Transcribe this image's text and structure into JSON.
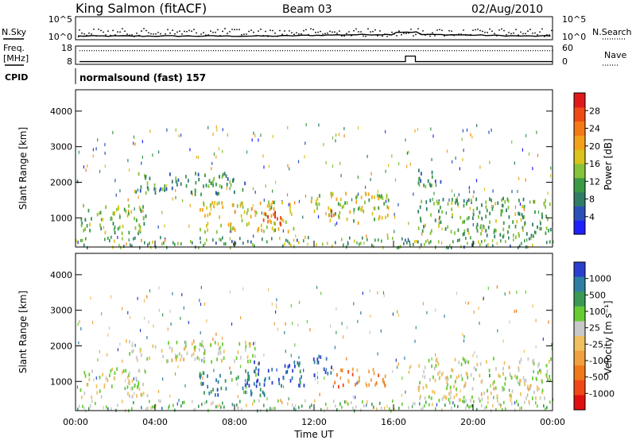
{
  "header": {
    "station": "King Salmon (fitACF)",
    "beam": "Beam 03",
    "date": "02/Aug/2010"
  },
  "left_labels": {
    "nsky": "N.Sky",
    "freq": "Freq.",
    "mhz": "[MHz]",
    "cpid": "CPID"
  },
  "right_labels": {
    "nsearch": "N.Search",
    "nave": "Nave"
  },
  "cpid_text": "normalsound (fast) 157",
  "chart_data": [
    {
      "type": "line",
      "panel": "noise",
      "series": [
        {
          "name": "N.Sky",
          "style": "solid"
        },
        {
          "name": "N.Search",
          "style": "dotted"
        }
      ],
      "y_scale": "log",
      "yticks": [
        "10^5",
        "10^0"
      ],
      "right_ticks": [
        "10^5",
        "10^0"
      ],
      "xlim": [
        0,
        24
      ]
    },
    {
      "type": "line",
      "panel": "frequency",
      "series": [
        {
          "name": "Freq.",
          "style": "solid",
          "segments": [
            {
              "t0": 0.2,
              "t1": 16.6,
              "value": 9.5
            },
            {
              "t0": 16.6,
              "t1": 17.1,
              "value": 12.5
            },
            {
              "t0": 17.1,
              "t1": 24,
              "value": 9.5
            }
          ]
        },
        {
          "name": "Nave",
          "style": "dotted",
          "value": 45
        }
      ],
      "ylim_left": [
        8,
        18
      ],
      "yticks_left": [
        "18",
        "8"
      ],
      "ylim_right": [
        0,
        60
      ],
      "yticks_right": [
        "60",
        "0"
      ]
    },
    {
      "type": "heatmap",
      "panel": "power",
      "ylabel": "Slant Range [km]",
      "xlim": [
        0,
        24
      ],
      "ylim": [
        180,
        4600
      ],
      "yticks": [
        1000,
        2000,
        3000,
        4000
      ],
      "colorbar": {
        "label": "Power [dB]",
        "ticks": [
          "4",
          "8",
          "12",
          "16",
          "20",
          "24",
          "28"
        ],
        "colors": [
          "#2020ff",
          "#2b50b8",
          "#2f7d66",
          "#3a9a45",
          "#86c23a",
          "#d9c31c",
          "#f2a21a",
          "#f47a16",
          "#ef4a16",
          "#e01a1a"
        ]
      },
      "features": [
        {
          "t0": 0.2,
          "t1": 3.6,
          "r0": 600,
          "r1": 1400,
          "level": 0.4
        },
        {
          "t0": 3.0,
          "t1": 8.5,
          "r0": 1700,
          "r1": 2300,
          "level": 0.3
        },
        {
          "t0": 6.2,
          "t1": 11.0,
          "r0": 650,
          "r1": 1500,
          "level": 0.55
        },
        {
          "t0": 9.3,
          "t1": 10.3,
          "r0": 800,
          "r1": 1300,
          "level": 0.9
        },
        {
          "t0": 11.7,
          "t1": 15.8,
          "r0": 900,
          "r1": 1750,
          "level": 0.5
        },
        {
          "t0": 12.5,
          "t1": 13.0,
          "r0": 1100,
          "r1": 1400,
          "level": 0.85
        },
        {
          "t0": 17.2,
          "t1": 23.9,
          "r0": 500,
          "r1": 1600,
          "level": 0.35
        },
        {
          "t0": 17.0,
          "t1": 18.5,
          "r0": 1900,
          "r1": 2400,
          "level": 0.25
        }
      ]
    },
    {
      "type": "heatmap",
      "panel": "velocity",
      "ylabel": "Slant Range [km]",
      "xlabel": "Time UT",
      "xticks": [
        "00:00",
        "04:00",
        "08:00",
        "12:00",
        "16:00",
        "20:00",
        "00:00"
      ],
      "xlim": [
        0,
        24
      ],
      "ylim": [
        180,
        4600
      ],
      "yticks": [
        1000,
        2000,
        3000,
        4000
      ],
      "colorbar": {
        "label": "Velocity [m s⁻¹]",
        "ticks": [
          "1000",
          "500",
          "100",
          "25",
          "-25",
          "-100",
          "-500",
          "-1000"
        ],
        "colors": [
          "#2a3fd0",
          "#2f7fa4",
          "#3a9a55",
          "#66cc33",
          "#c8c8c8",
          "#f0c060",
          "#f0a040",
          "#f07818",
          "#f04818",
          "#e01010"
        ]
      },
      "features": [
        {
          "t0": 0.2,
          "t1": 3.6,
          "r0": 600,
          "r1": 1400,
          "level": 0.45
        },
        {
          "t0": 2.5,
          "t1": 9.0,
          "r0": 1600,
          "r1": 2200,
          "level": 0.45
        },
        {
          "t0": 6.2,
          "t1": 9.5,
          "r0": 650,
          "r1": 1300,
          "level": 0.15
        },
        {
          "t0": 8.5,
          "t1": 11.5,
          "r0": 900,
          "r1": 1600,
          "level": 0.05
        },
        {
          "t0": 11.8,
          "t1": 13.0,
          "r0": 1200,
          "r1": 1750,
          "level": 0.0
        },
        {
          "t0": 13.0,
          "t1": 15.6,
          "r0": 900,
          "r1": 1400,
          "level": 0.7
        },
        {
          "t0": 17.2,
          "t1": 23.9,
          "r0": 500,
          "r1": 1700,
          "level": 0.45
        }
      ]
    }
  ]
}
